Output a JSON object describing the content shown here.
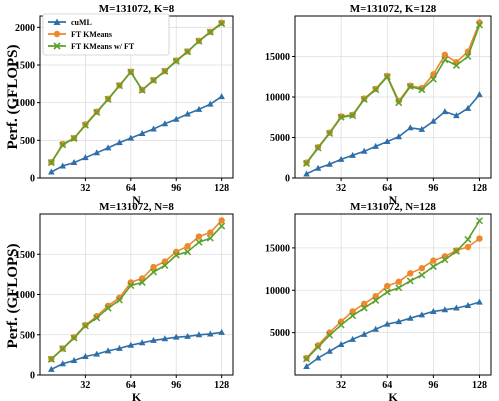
{
  "figure": {
    "ylabel": "Perf. (GFLOPS)"
  },
  "legend": {
    "entries": [
      {
        "label": "cuML",
        "color": "#2f6fa8",
        "marker": "triangle"
      },
      {
        "label": "FT KMeans",
        "color": "#f0872c",
        "marker": "circle"
      },
      {
        "label": "FT KMeans w/ FT",
        "color": "#5aa02c",
        "marker": "x"
      }
    ]
  },
  "chart_data": [
    {
      "type": "line",
      "title": "M=131072, K=8",
      "xlabel": "N",
      "ylabel": "Perf. (GFLOPS)",
      "xlim": [
        0,
        136
      ],
      "ylim": [
        0,
        2150
      ],
      "xticks": [
        32,
        64,
        96,
        128
      ],
      "yticks": [
        0,
        500,
        1000,
        1500,
        2000
      ],
      "x": [
        8,
        16,
        24,
        32,
        40,
        48,
        56,
        64,
        72,
        80,
        88,
        96,
        104,
        112,
        120,
        128
      ],
      "series": [
        {
          "name": "cuML",
          "values": [
            80,
            160,
            205,
            270,
            335,
            400,
            470,
            530,
            590,
            650,
            720,
            780,
            850,
            910,
            980,
            1080
          ]
        },
        {
          "name": "FT KMeans",
          "values": [
            210,
            450,
            530,
            710,
            880,
            1050,
            1230,
            1410,
            1170,
            1300,
            1420,
            1560,
            1680,
            1820,
            1940,
            2060
          ]
        },
        {
          "name": "FT KMeans w/ FT",
          "values": [
            205,
            440,
            525,
            700,
            870,
            1045,
            1225,
            1405,
            1165,
            1295,
            1415,
            1550,
            1675,
            1815,
            1935,
            2050
          ]
        }
      ]
    },
    {
      "type": "line",
      "title": "M=131072, K=128",
      "xlabel": "N",
      "ylabel": "",
      "xlim": [
        0,
        136
      ],
      "ylim": [
        0,
        20000
      ],
      "xticks": [
        32,
        64,
        96,
        128
      ],
      "yticks": [
        0,
        5000,
        10000,
        15000
      ],
      "x": [
        8,
        16,
        24,
        32,
        40,
        48,
        56,
        64,
        72,
        80,
        88,
        96,
        104,
        112,
        120,
        128
      ],
      "series": [
        {
          "name": "cuML",
          "values": [
            500,
            1200,
            1700,
            2300,
            2800,
            3300,
            3900,
            4500,
            5100,
            6200,
            6000,
            7000,
            8200,
            7700,
            8600,
            10300
          ]
        },
        {
          "name": "FT KMeans",
          "values": [
            1900,
            3800,
            5600,
            7600,
            7800,
            9800,
            11000,
            12600,
            9500,
            11400,
            11100,
            12800,
            15200,
            14300,
            15600,
            19200
          ]
        },
        {
          "name": "FT KMeans w/ FT",
          "values": [
            1800,
            3700,
            5500,
            7500,
            7700,
            9700,
            10900,
            12500,
            9300,
            11300,
            10900,
            12200,
            14600,
            13900,
            15000,
            18900
          ]
        }
      ]
    },
    {
      "type": "line",
      "title": "M=131072, N=8",
      "xlabel": "K",
      "ylabel": "Perf. (GFLOPS)",
      "xlim": [
        0,
        136
      ],
      "ylim": [
        0,
        2000
      ],
      "xticks": [
        32,
        64,
        96,
        128
      ],
      "yticks": [
        0,
        500,
        1000,
        1500
      ],
      "x": [
        8,
        16,
        24,
        32,
        40,
        48,
        56,
        64,
        72,
        80,
        88,
        96,
        104,
        112,
        120,
        128
      ],
      "series": [
        {
          "name": "cuML",
          "values": [
            70,
            140,
            180,
            230,
            260,
            300,
            330,
            370,
            400,
            430,
            450,
            470,
            480,
            500,
            510,
            530
          ]
        },
        {
          "name": "FT KMeans",
          "values": [
            200,
            330,
            470,
            620,
            730,
            860,
            960,
            1150,
            1200,
            1340,
            1410,
            1530,
            1600,
            1720,
            1770,
            1920
          ]
        },
        {
          "name": "FT KMeans w/ FT",
          "values": [
            195,
            325,
            460,
            610,
            710,
            830,
            930,
            1110,
            1150,
            1280,
            1360,
            1490,
            1530,
            1650,
            1700,
            1850
          ]
        }
      ]
    },
    {
      "type": "line",
      "title": "M=131072, N=128",
      "xlabel": "K",
      "ylabel": "",
      "xlim": [
        0,
        136
      ],
      "ylim": [
        0,
        19000
      ],
      "xticks": [
        32,
        64,
        96,
        128
      ],
      "yticks": [
        5000,
        10000,
        15000
      ],
      "x": [
        8,
        16,
        24,
        32,
        40,
        48,
        56,
        64,
        72,
        80,
        88,
        96,
        104,
        112,
        120,
        128
      ],
      "series": [
        {
          "name": "cuML",
          "values": [
            1000,
            2000,
            2800,
            3600,
            4200,
            4800,
            5400,
            6000,
            6300,
            6700,
            7100,
            7500,
            7700,
            7900,
            8200,
            8600
          ]
        },
        {
          "name": "FT KMeans",
          "values": [
            2000,
            3500,
            5000,
            6300,
            7500,
            8400,
            9300,
            10500,
            11000,
            12000,
            12600,
            13500,
            14000,
            14700,
            15100,
            16100
          ]
        },
        {
          "name": "FT KMeans w/ FT",
          "values": [
            1900,
            3300,
            4700,
            5900,
            7000,
            7900,
            8800,
            9800,
            10300,
            11100,
            11800,
            12800,
            13600,
            14600,
            16000,
            18200
          ]
        }
      ]
    }
  ]
}
